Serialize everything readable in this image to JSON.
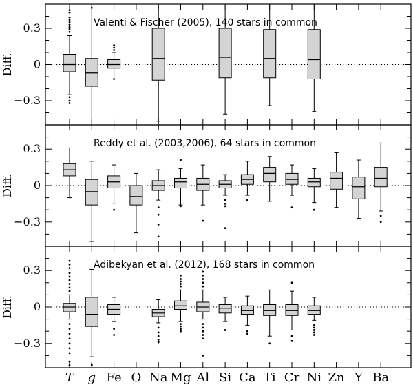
{
  "chart_data": {
    "type": "box",
    "elements": [
      "T",
      "g",
      "Fe",
      "O",
      "Na",
      "Mg",
      "Al",
      "Si",
      "Ca",
      "Ti",
      "Cr",
      "Ni",
      "Zn",
      "Y",
      "Ba"
    ],
    "italic_elements": [
      "T",
      "g"
    ],
    "y_ticks": [
      0.3,
      0,
      -0.3
    ],
    "y_tick_labels": [
      "0.3",
      "0",
      "−0.3"
    ],
    "ylim": [
      -0.5,
      0.5
    ],
    "zero_line": "dotted",
    "panels": [
      {
        "title": "Valenti & Fischer (2005), 140 stars in common",
        "ylabel": "Diff.",
        "boxes": [
          {
            "el": "T",
            "q1": -0.06,
            "med": 0.0,
            "q3": 0.08,
            "wlo": -0.25,
            "whi": 0.24,
            "out": [
              0.27,
              0.29,
              0.3,
              0.31,
              0.33,
              0.35,
              0.37,
              0.39,
              0.43,
              0.45,
              -0.27,
              -0.3,
              -0.32
            ]
          },
          {
            "el": "g",
            "q1": -0.18,
            "med": -0.07,
            "q3": 0.05,
            "wlo": -0.5,
            "whi": 0.5,
            "out": [
              0.47
            ]
          },
          {
            "el": "Fe",
            "q1": -0.03,
            "med": 0.0,
            "q3": 0.04,
            "wlo": -0.12,
            "whi": 0.1,
            "out": [
              0.12,
              0.14,
              0.16,
              -0.12
            ]
          },
          {
            "el": "Na",
            "q1": -0.13,
            "med": 0.05,
            "q3": 0.3,
            "wlo": -0.47,
            "whi": 0.5,
            "out": []
          },
          {
            "el": "Si",
            "q1": -0.11,
            "med": 0.06,
            "q3": 0.3,
            "wlo": -0.41,
            "whi": 0.5,
            "out": []
          },
          {
            "el": "Ti",
            "q1": -0.11,
            "med": 0.05,
            "q3": 0.29,
            "wlo": -0.34,
            "whi": 0.5,
            "out": []
          },
          {
            "el": "Ni",
            "q1": -0.12,
            "med": 0.04,
            "q3": 0.29,
            "wlo": -0.39,
            "whi": 0.5,
            "out": []
          }
        ]
      },
      {
        "title": "Reddy et al. (2003,2006), 64 stars in common",
        "ylabel": "Diff.",
        "boxes": [
          {
            "el": "T",
            "q1": 0.08,
            "med": 0.13,
            "q3": 0.18,
            "wlo": -0.1,
            "whi": 0.31,
            "out": []
          },
          {
            "el": "g",
            "q1": -0.16,
            "med": -0.05,
            "q3": 0.05,
            "wlo": -0.46,
            "whi": 0.2,
            "out": []
          },
          {
            "el": "Fe",
            "q1": -0.02,
            "med": 0.03,
            "q3": 0.08,
            "wlo": -0.15,
            "whi": 0.17,
            "out": [
              -0.2
            ]
          },
          {
            "el": "O",
            "q1": -0.16,
            "med": -0.09,
            "q3": 0.0,
            "wlo": -0.39,
            "whi": 0.1,
            "out": []
          },
          {
            "el": "Na",
            "q1": -0.04,
            "med": 0.0,
            "q3": 0.04,
            "wlo": -0.12,
            "whi": 0.13,
            "out": [
              -0.18,
              -0.24,
              -0.32,
              -0.42
            ]
          },
          {
            "el": "Mg",
            "q1": -0.02,
            "med": 0.03,
            "q3": 0.06,
            "wlo": -0.16,
            "whi": 0.14,
            "out": [
              0.21,
              -0.17
            ]
          },
          {
            "el": "Al",
            "q1": -0.04,
            "med": 0.01,
            "q3": 0.06,
            "wlo": -0.16,
            "whi": 0.17,
            "out": [
              -0.29
            ]
          },
          {
            "el": "Si",
            "q1": -0.02,
            "med": 0.01,
            "q3": 0.04,
            "wlo": -0.08,
            "whi": 0.09,
            "out": [
              -0.12,
              -0.15,
              -0.17,
              -0.35
            ]
          },
          {
            "el": "Ca",
            "q1": 0.01,
            "med": 0.05,
            "q3": 0.09,
            "wlo": -0.08,
            "whi": 0.2,
            "out": [
              -0.12
            ]
          },
          {
            "el": "Ti",
            "q1": 0.03,
            "med": 0.1,
            "q3": 0.15,
            "wlo": -0.13,
            "whi": 0.24,
            "out": []
          },
          {
            "el": "Cr",
            "q1": 0.01,
            "med": 0.05,
            "q3": 0.1,
            "wlo": -0.08,
            "whi": 0.17,
            "out": [
              -0.18
            ]
          },
          {
            "el": "Ni",
            "q1": -0.01,
            "med": 0.03,
            "q3": 0.06,
            "wlo": -0.14,
            "whi": 0.14,
            "out": [
              -0.2
            ]
          },
          {
            "el": "Zn",
            "q1": -0.03,
            "med": 0.06,
            "q3": 0.11,
            "wlo": -0.18,
            "whi": 0.27,
            "out": []
          },
          {
            "el": "Y",
            "q1": -0.11,
            "med": -0.01,
            "q3": 0.07,
            "wlo": -0.27,
            "whi": 0.21,
            "out": []
          },
          {
            "el": "Ba",
            "q1": -0.01,
            "med": 0.06,
            "q3": 0.15,
            "wlo": -0.21,
            "whi": 0.35,
            "out": [
              -0.25,
              -0.3
            ]
          }
        ]
      },
      {
        "title": "Adibekyan et al. (2012), 168 stars in common",
        "ylabel": "Diff.",
        "boxes": [
          {
            "el": "T",
            "q1": -0.04,
            "med": 0.0,
            "q3": 0.03,
            "wlo": -0.1,
            "whi": 0.1,
            "out": [
              0.13,
              0.16,
              0.19,
              0.22,
              0.25,
              0.28,
              0.32,
              0.35,
              0.38,
              -0.14,
              -0.18,
              -0.22,
              -0.26,
              -0.3,
              -0.34,
              -0.38,
              -0.45,
              -0.48
            ]
          },
          {
            "el": "g",
            "q1": -0.16,
            "med": -0.06,
            "q3": 0.08,
            "wlo": -0.41,
            "whi": 0.31,
            "out": [
              -0.47,
              -0.48
            ]
          },
          {
            "el": "Fe",
            "q1": -0.06,
            "med": -0.02,
            "q3": 0.02,
            "wlo": -0.12,
            "whi": 0.08,
            "out": [
              -0.18,
              -0.23
            ]
          },
          {
            "el": "Na",
            "q1": -0.08,
            "med": -0.05,
            "q3": -0.02,
            "wlo": -0.13,
            "whi": 0.06,
            "out": [
              -0.17,
              -0.21,
              -0.24,
              -0.27,
              -0.29
            ]
          },
          {
            "el": "Mg",
            "q1": -0.02,
            "med": 0.01,
            "q3": 0.05,
            "wlo": -0.12,
            "whi": 0.14,
            "out": [
              0.17,
              0.19,
              0.21,
              0.23,
              0.26,
              -0.14,
              -0.16,
              -0.18,
              -0.2
            ]
          },
          {
            "el": "Al",
            "q1": -0.04,
            "med": 0.0,
            "q3": 0.04,
            "wlo": -0.1,
            "whi": 0.14,
            "out": [
              0.17,
              0.2,
              0.23,
              0.26,
              0.29,
              -0.14,
              -0.17,
              -0.2,
              -0.23,
              -0.26,
              -0.4
            ]
          },
          {
            "el": "Si",
            "q1": -0.05,
            "med": -0.01,
            "q3": 0.02,
            "wlo": -0.12,
            "whi": 0.08,
            "out": [
              -0.19
            ]
          },
          {
            "el": "Ca",
            "q1": -0.06,
            "med": -0.03,
            "q3": 0.01,
            "wlo": -0.15,
            "whi": 0.09,
            "out": [
              -0.2,
              -0.22
            ]
          },
          {
            "el": "Ti",
            "q1": -0.07,
            "med": -0.03,
            "q3": 0.02,
            "wlo": -0.24,
            "whi": 0.14,
            "out": [
              -0.3
            ]
          },
          {
            "el": "Cr",
            "q1": -0.07,
            "med": -0.03,
            "q3": 0.02,
            "wlo": -0.19,
            "whi": 0.13,
            "out": [
              0.2,
              -0.24,
              -0.28
            ]
          },
          {
            "el": "Ni",
            "q1": -0.06,
            "med": -0.03,
            "q3": 0.01,
            "wlo": -0.11,
            "whi": 0.08,
            "out": [
              -0.15,
              -0.17,
              -0.19,
              -0.21,
              -0.23
            ]
          }
        ]
      }
    ]
  }
}
